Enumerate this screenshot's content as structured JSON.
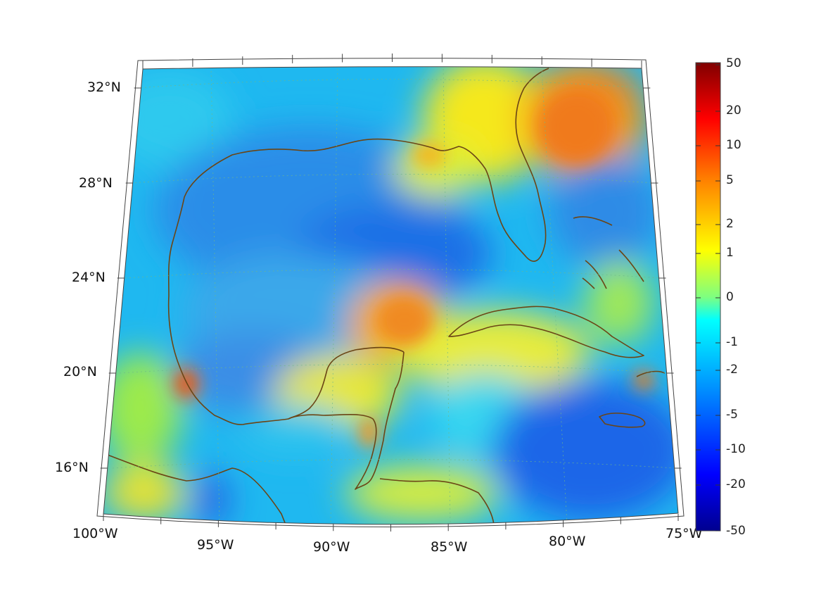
{
  "map": {
    "region": "Gulf of Mexico and Caribbean",
    "projection": "conic",
    "lon_range": [
      -100,
      -75
    ],
    "lat_range": [
      14,
      33
    ],
    "graticule": "dotted",
    "coastline_color": "#6b4515",
    "lon_labels": [
      "100°W",
      "95°W",
      "90°W",
      "85°W",
      "80°W",
      "75°W"
    ],
    "lat_labels": [
      "32°N",
      "28°N",
      "24°N",
      "20°N",
      "16°N"
    ]
  },
  "colorbar": {
    "orientation": "vertical",
    "colormap": "jet",
    "tick_labels": [
      "50",
      "20",
      "10",
      "5",
      "2",
      "1",
      "0",
      "-1",
      "-2",
      "-5",
      "-10",
      "-20",
      "-50"
    ],
    "range": [
      -50,
      50
    ]
  }
}
